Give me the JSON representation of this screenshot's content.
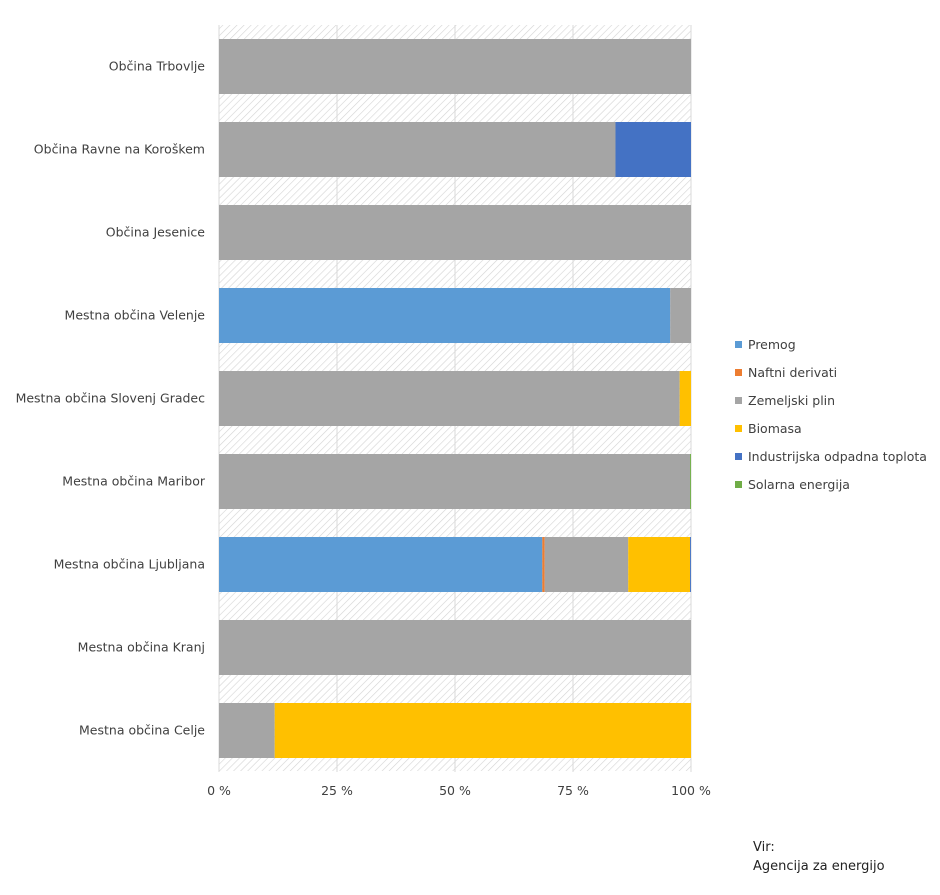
{
  "chart_data": {
    "type": "bar",
    "orientation": "horizontal",
    "stacked": "percent",
    "categories": [
      "Občina Trbovlje",
      "Občina Ravne na Koroškem",
      "Občina Jesenice",
      "Mestna občina Velenje",
      "Mestna občina Slovenj Gradec",
      "Mestna občina Maribor",
      "Mestna občina Ljubljana",
      "Mestna občina Kranj",
      "Mestna občina Celje"
    ],
    "series": [
      {
        "name": "Premog",
        "color": "#5b9bd5",
        "values": [
          0,
          0,
          0,
          95.6,
          0,
          0,
          68.5,
          0,
          0
        ]
      },
      {
        "name": "Naftni derivati",
        "color": "#ed7d31",
        "values": [
          0,
          0,
          0,
          0,
          0,
          0,
          0.5,
          0,
          0
        ]
      },
      {
        "name": "Zemeljski plin",
        "color": "#a5a5a5",
        "values": [
          100,
          84,
          100,
          4.4,
          97.6,
          99.8,
          17.7,
          100,
          11.8
        ]
      },
      {
        "name": "Biomasa",
        "color": "#ffc000",
        "values": [
          0,
          0,
          0,
          0,
          2.4,
          0,
          13.1,
          0,
          88.2
        ]
      },
      {
        "name": "Industrijska odpadna toplota",
        "color": "#4472c4",
        "values": [
          0,
          16,
          0,
          0,
          0,
          0,
          0.2,
          0,
          0
        ]
      },
      {
        "name": "Solarna energija",
        "color": "#70ad47",
        "values": [
          0,
          0,
          0,
          0,
          0,
          0.2,
          0,
          0,
          0
        ]
      }
    ],
    "xaxis": {
      "ticks": [
        0,
        25,
        50,
        75,
        100
      ],
      "tick_labels": [
        "0 %",
        "25 %",
        "50 %",
        "75 %",
        "100 %"
      ],
      "range": [
        0,
        100
      ]
    },
    "legend_position": "right",
    "grid": true
  },
  "source": {
    "line1": "Vir:",
    "line2": "Agencija za energijo"
  }
}
